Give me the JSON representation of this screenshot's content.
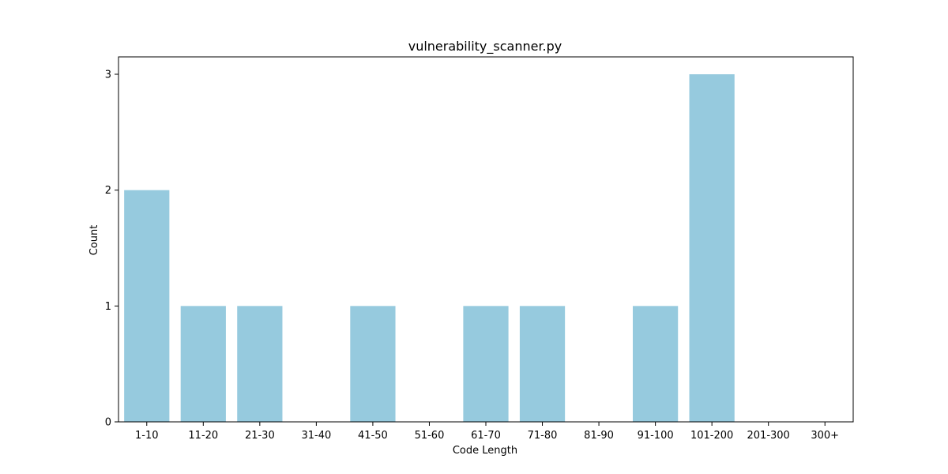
{
  "chart_data": {
    "type": "bar",
    "title": "vulnerability_scanner.py",
    "xlabel": "Code Length",
    "ylabel": "Count",
    "categories": [
      "1-10",
      "11-20",
      "21-30",
      "31-40",
      "41-50",
      "51-60",
      "61-70",
      "71-80",
      "81-90",
      "91-100",
      "101-200",
      "201-300",
      "300+"
    ],
    "values": [
      2,
      1,
      1,
      0,
      1,
      0,
      1,
      1,
      0,
      1,
      3,
      0,
      0
    ],
    "yticks": [
      "0",
      "1",
      "2",
      "3"
    ],
    "ylim": [
      0,
      3.15
    ],
    "grid": false,
    "bar_color": "#96cade"
  }
}
